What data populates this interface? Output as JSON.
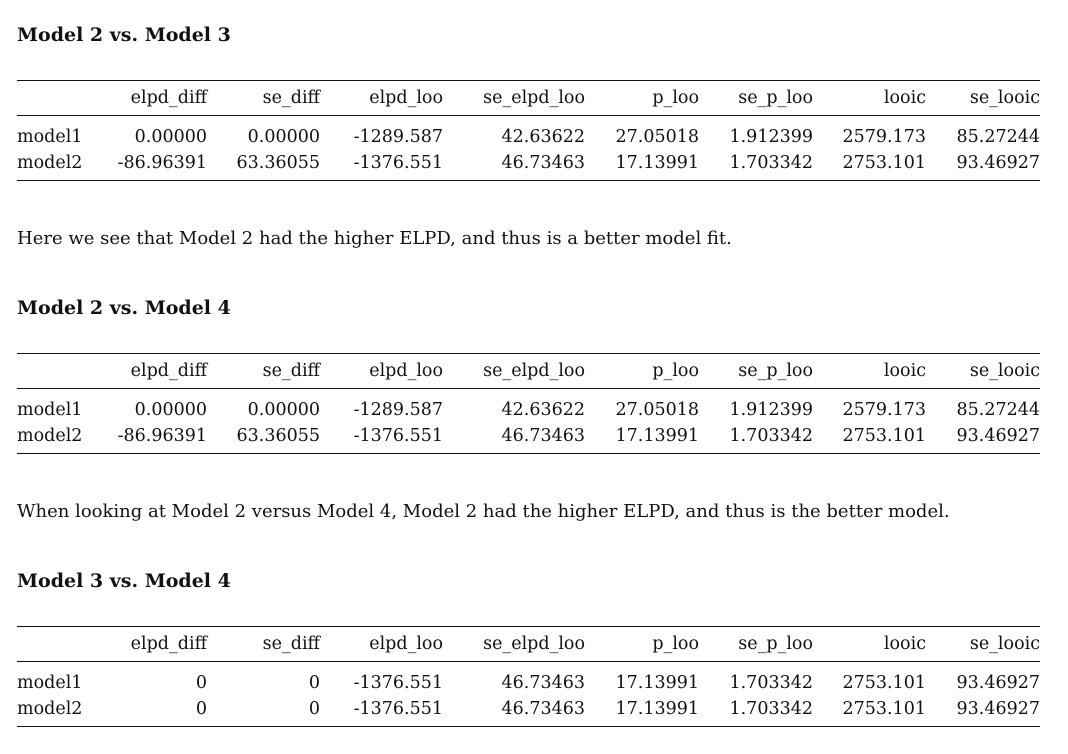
{
  "sections": [
    {
      "heading": "Model 2 vs. Model 3",
      "columns": [
        "",
        "elpd_diff",
        "se_diff",
        "elpd_loo",
        "se_elpd_loo",
        "p_loo",
        "se_p_loo",
        "looic",
        "se_looic"
      ],
      "rows": [
        [
          "model1",
          "0.00000",
          "0.00000",
          "-1289.587",
          "42.63622",
          "27.05018",
          "1.912399",
          "2579.173",
          "85.27244"
        ],
        [
          "model2",
          "-86.96391",
          "63.36055",
          "-1376.551",
          "46.73463",
          "17.13991",
          "1.703342",
          "2753.101",
          "93.46927"
        ]
      ],
      "paragraph": "Here we see that Model 2 had the higher ELPD, and thus is a better model fit."
    },
    {
      "heading": "Model 2 vs. Model 4",
      "columns": [
        "",
        "elpd_diff",
        "se_diff",
        "elpd_loo",
        "se_elpd_loo",
        "p_loo",
        "se_p_loo",
        "looic",
        "se_looic"
      ],
      "rows": [
        [
          "model1",
          "0.00000",
          "0.00000",
          "-1289.587",
          "42.63622",
          "27.05018",
          "1.912399",
          "2579.173",
          "85.27244"
        ],
        [
          "model2",
          "-86.96391",
          "63.36055",
          "-1376.551",
          "46.73463",
          "17.13991",
          "1.703342",
          "2753.101",
          "93.46927"
        ]
      ],
      "paragraph": "When looking at Model 2 versus Model 4, Model 2 had the higher ELPD, and thus is the better model."
    },
    {
      "heading": "Model 3 vs. Model 4",
      "columns": [
        "",
        "elpd_diff",
        "se_diff",
        "elpd_loo",
        "se_elpd_loo",
        "p_loo",
        "se_p_loo",
        "looic",
        "se_looic"
      ],
      "rows": [
        [
          "model1",
          "0",
          "0",
          "-1376.551",
          "46.73463",
          "17.13991",
          "1.703342",
          "2753.101",
          "93.46927"
        ],
        [
          "model2",
          "0",
          "0",
          "-1376.551",
          "46.73463",
          "17.13991",
          "1.703342",
          "2753.101",
          "93.46927"
        ]
      ]
    }
  ]
}
